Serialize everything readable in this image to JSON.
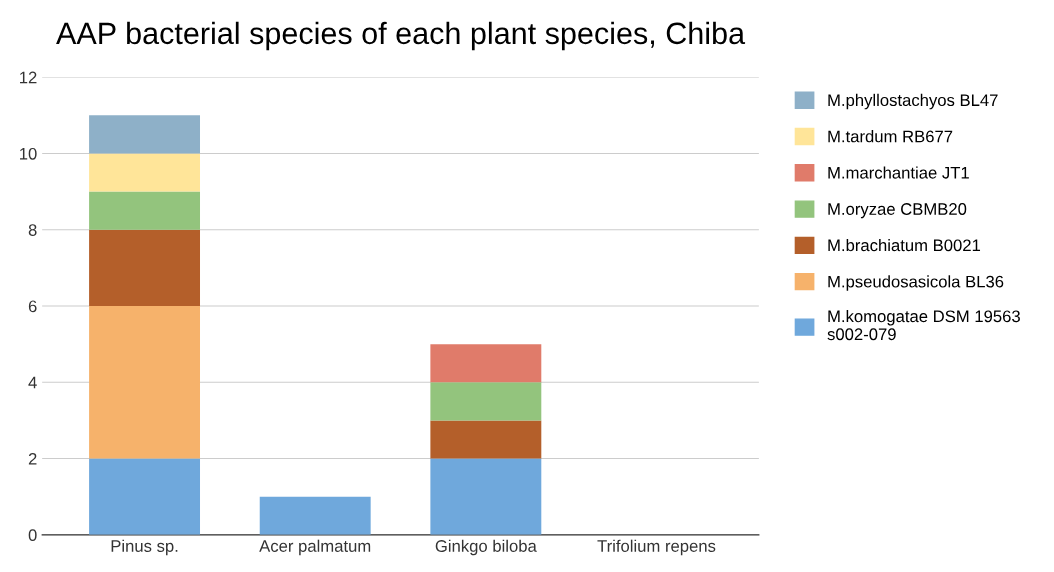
{
  "chart_data": {
    "type": "bar",
    "stacked": true,
    "title": "AAP bacterial species of each plant species, Chiba",
    "categories": [
      "Pinus sp.",
      "Acer palmatum",
      "Ginkgo biloba",
      "Trifolium repens"
    ],
    "series": [
      {
        "name": "M.komogatae DSM 19563\ns002-079",
        "color": "#6fa8dc",
        "values": [
          2,
          1,
          2,
          0
        ]
      },
      {
        "name": "M.pseudosasicola BL36",
        "color": "#f6b26b",
        "values": [
          4,
          0,
          0,
          0
        ]
      },
      {
        "name": "M.brachiatum B0021",
        "color": "#b45f2a",
        "values": [
          2,
          0,
          1,
          0
        ]
      },
      {
        "name": "M.oryzae CBMB20",
        "color": "#93c47d",
        "values": [
          1,
          0,
          1,
          0
        ]
      },
      {
        "name": "M.marchantiae JT1",
        "color": "#e07b6a",
        "values": [
          0,
          0,
          1,
          0
        ]
      },
      {
        "name": "M.tardum RB677",
        "color": "#ffe599",
        "values": [
          1,
          0,
          0,
          0
        ]
      },
      {
        "name": "M.phyllostachyos BL47",
        "color": "#8eb0c8",
        "values": [
          1,
          0,
          0,
          0
        ]
      }
    ],
    "ylim": [
      0,
      12
    ],
    "yticks": [
      0,
      2,
      4,
      6,
      8,
      10,
      12
    ],
    "grid": "y",
    "legend": "right"
  }
}
